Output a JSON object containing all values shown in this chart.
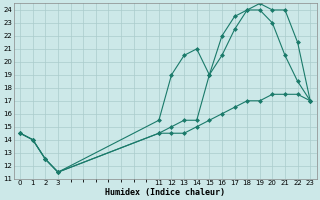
{
  "xlabel": "Humidex (Indice chaleur)",
  "bg_color": "#cce8e8",
  "grid_color": "#aacccc",
  "line_color": "#1a7a6a",
  "x_ticks": [
    0,
    1,
    2,
    3,
    11,
    12,
    13,
    14,
    15,
    16,
    17,
    18,
    19,
    20,
    21,
    22,
    23
  ],
  "line1_x": [
    0,
    1,
    2,
    3,
    11,
    12,
    13,
    14,
    15,
    16,
    17,
    18,
    19,
    20,
    21,
    22,
    23
  ],
  "line1_y": [
    14.5,
    14.0,
    12.5,
    11.5,
    14.5,
    14.5,
    14.5,
    15.0,
    15.5,
    16.0,
    16.5,
    17.0,
    17.0,
    17.5,
    17.5,
    17.5,
    17.0
  ],
  "line2_x": [
    0,
    1,
    2,
    3,
    11,
    12,
    13,
    14,
    15,
    16,
    17,
    18,
    19,
    20,
    21,
    22,
    23
  ],
  "line2_y": [
    14.5,
    14.0,
    12.5,
    11.5,
    15.5,
    19.0,
    20.5,
    21.0,
    19.0,
    22.0,
    23.5,
    24.0,
    24.0,
    23.0,
    20.5,
    18.5,
    17.0
  ],
  "line3_x": [
    0,
    1,
    2,
    3,
    11,
    12,
    13,
    14,
    15,
    16,
    17,
    18,
    19,
    20,
    21,
    22,
    23
  ],
  "line3_y": [
    14.5,
    14.0,
    12.5,
    11.5,
    14.5,
    15.0,
    15.5,
    15.5,
    19.0,
    20.5,
    22.5,
    24.0,
    24.5,
    24.0,
    24.0,
    21.5,
    17.0
  ],
  "xlim": [
    -0.5,
    23.5
  ],
  "ylim": [
    11,
    24.5
  ],
  "yticks": [
    11,
    12,
    13,
    14,
    15,
    16,
    17,
    18,
    19,
    20,
    21,
    22,
    23,
    24
  ],
  "markersize": 2.5,
  "linewidth": 0.8
}
